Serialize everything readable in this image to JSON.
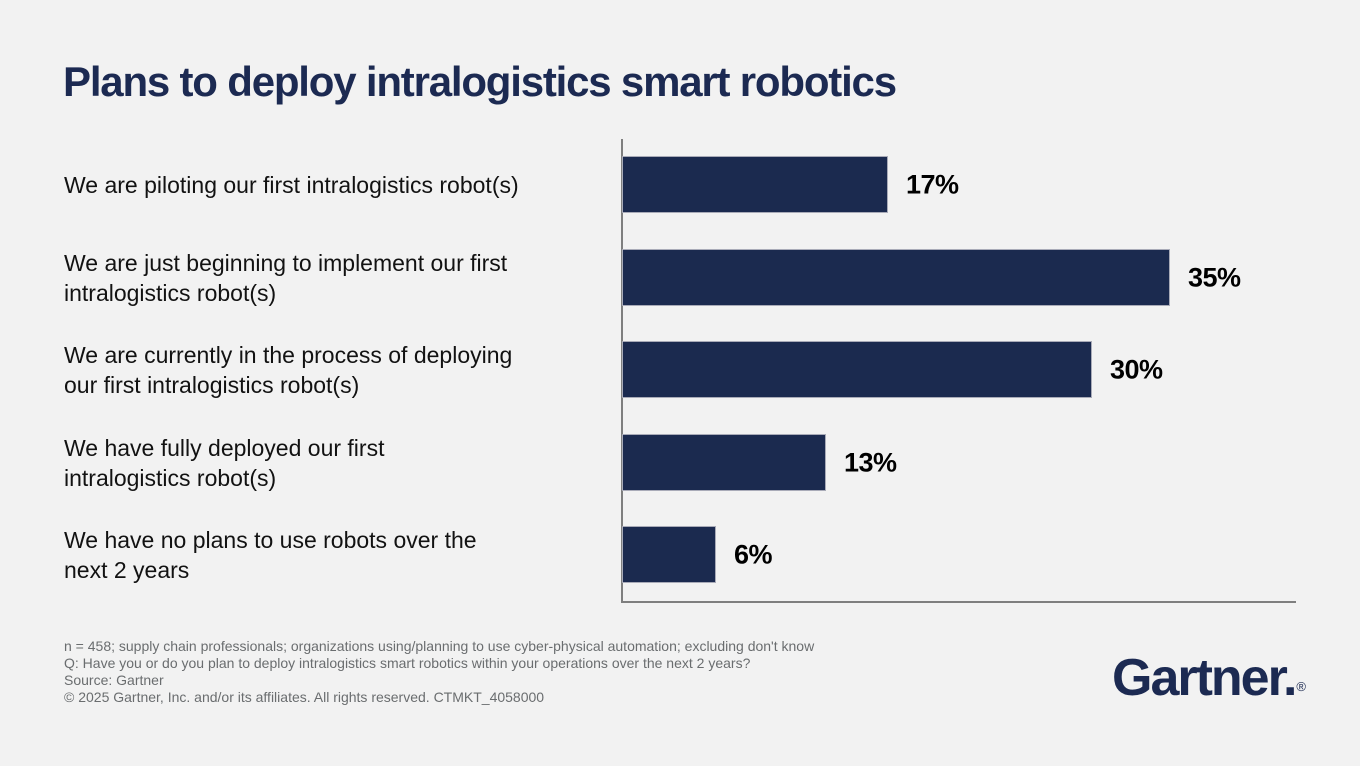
{
  "title": "Plans to deploy intralogistics smart robotics",
  "chart_data": {
    "type": "bar",
    "orientation": "horizontal",
    "title": "Plans to deploy intralogistics smart robotics",
    "categories": [
      "We are piloting our first intralogistics robot(s)",
      "We are just beginning to implement our first intralogistics robot(s)",
      "We are currently in the process of deploying our first intralogistics robot(s)",
      "We have fully deployed our first intralogistics robot(s)",
      "We have no plans to use robots over the next 2 years"
    ],
    "category_lines": [
      [
        "We are piloting our first intralogistics robot(s)"
      ],
      [
        "We are just beginning to implement our first",
        "intralogistics robot(s)"
      ],
      [
        "We are currently in the process of deploying",
        "our first intralogistics robot(s)"
      ],
      [
        "We have fully deployed our first",
        "intralogistics robot(s)"
      ],
      [
        "We have no plans to use robots over the",
        "next 2 years"
      ]
    ],
    "values": [
      17,
      35,
      30,
      13,
      6
    ],
    "value_labels": [
      "17%",
      "35%",
      "30%",
      "13%",
      "6%"
    ],
    "unit": "%",
    "xlim": [
      0,
      43
    ],
    "grid": false,
    "legend": false,
    "bar_color": "#1B2A4F",
    "bar_border_color": "#A9ABB8",
    "axis_color": "#7F7F7F",
    "value_label_color": "#000000",
    "category_label_color": "#121212",
    "title_color": "#1C2A52",
    "background_color": "#F2F2F2"
  },
  "footnotes": {
    "lines": [
      "n = 458; supply chain professionals; organizations using/planning to use cyber-physical automation; excluding don't know",
      "Q: Have you or do you plan to deploy intralogistics smart robotics within your operations over the next 2 years?",
      "Source: Gartner",
      "© 2025 Gartner, Inc. and/or its affiliates. All rights reserved. CTMKT_4058000"
    ]
  },
  "logo": {
    "text": "Gartner.",
    "registered_mark": "®"
  }
}
